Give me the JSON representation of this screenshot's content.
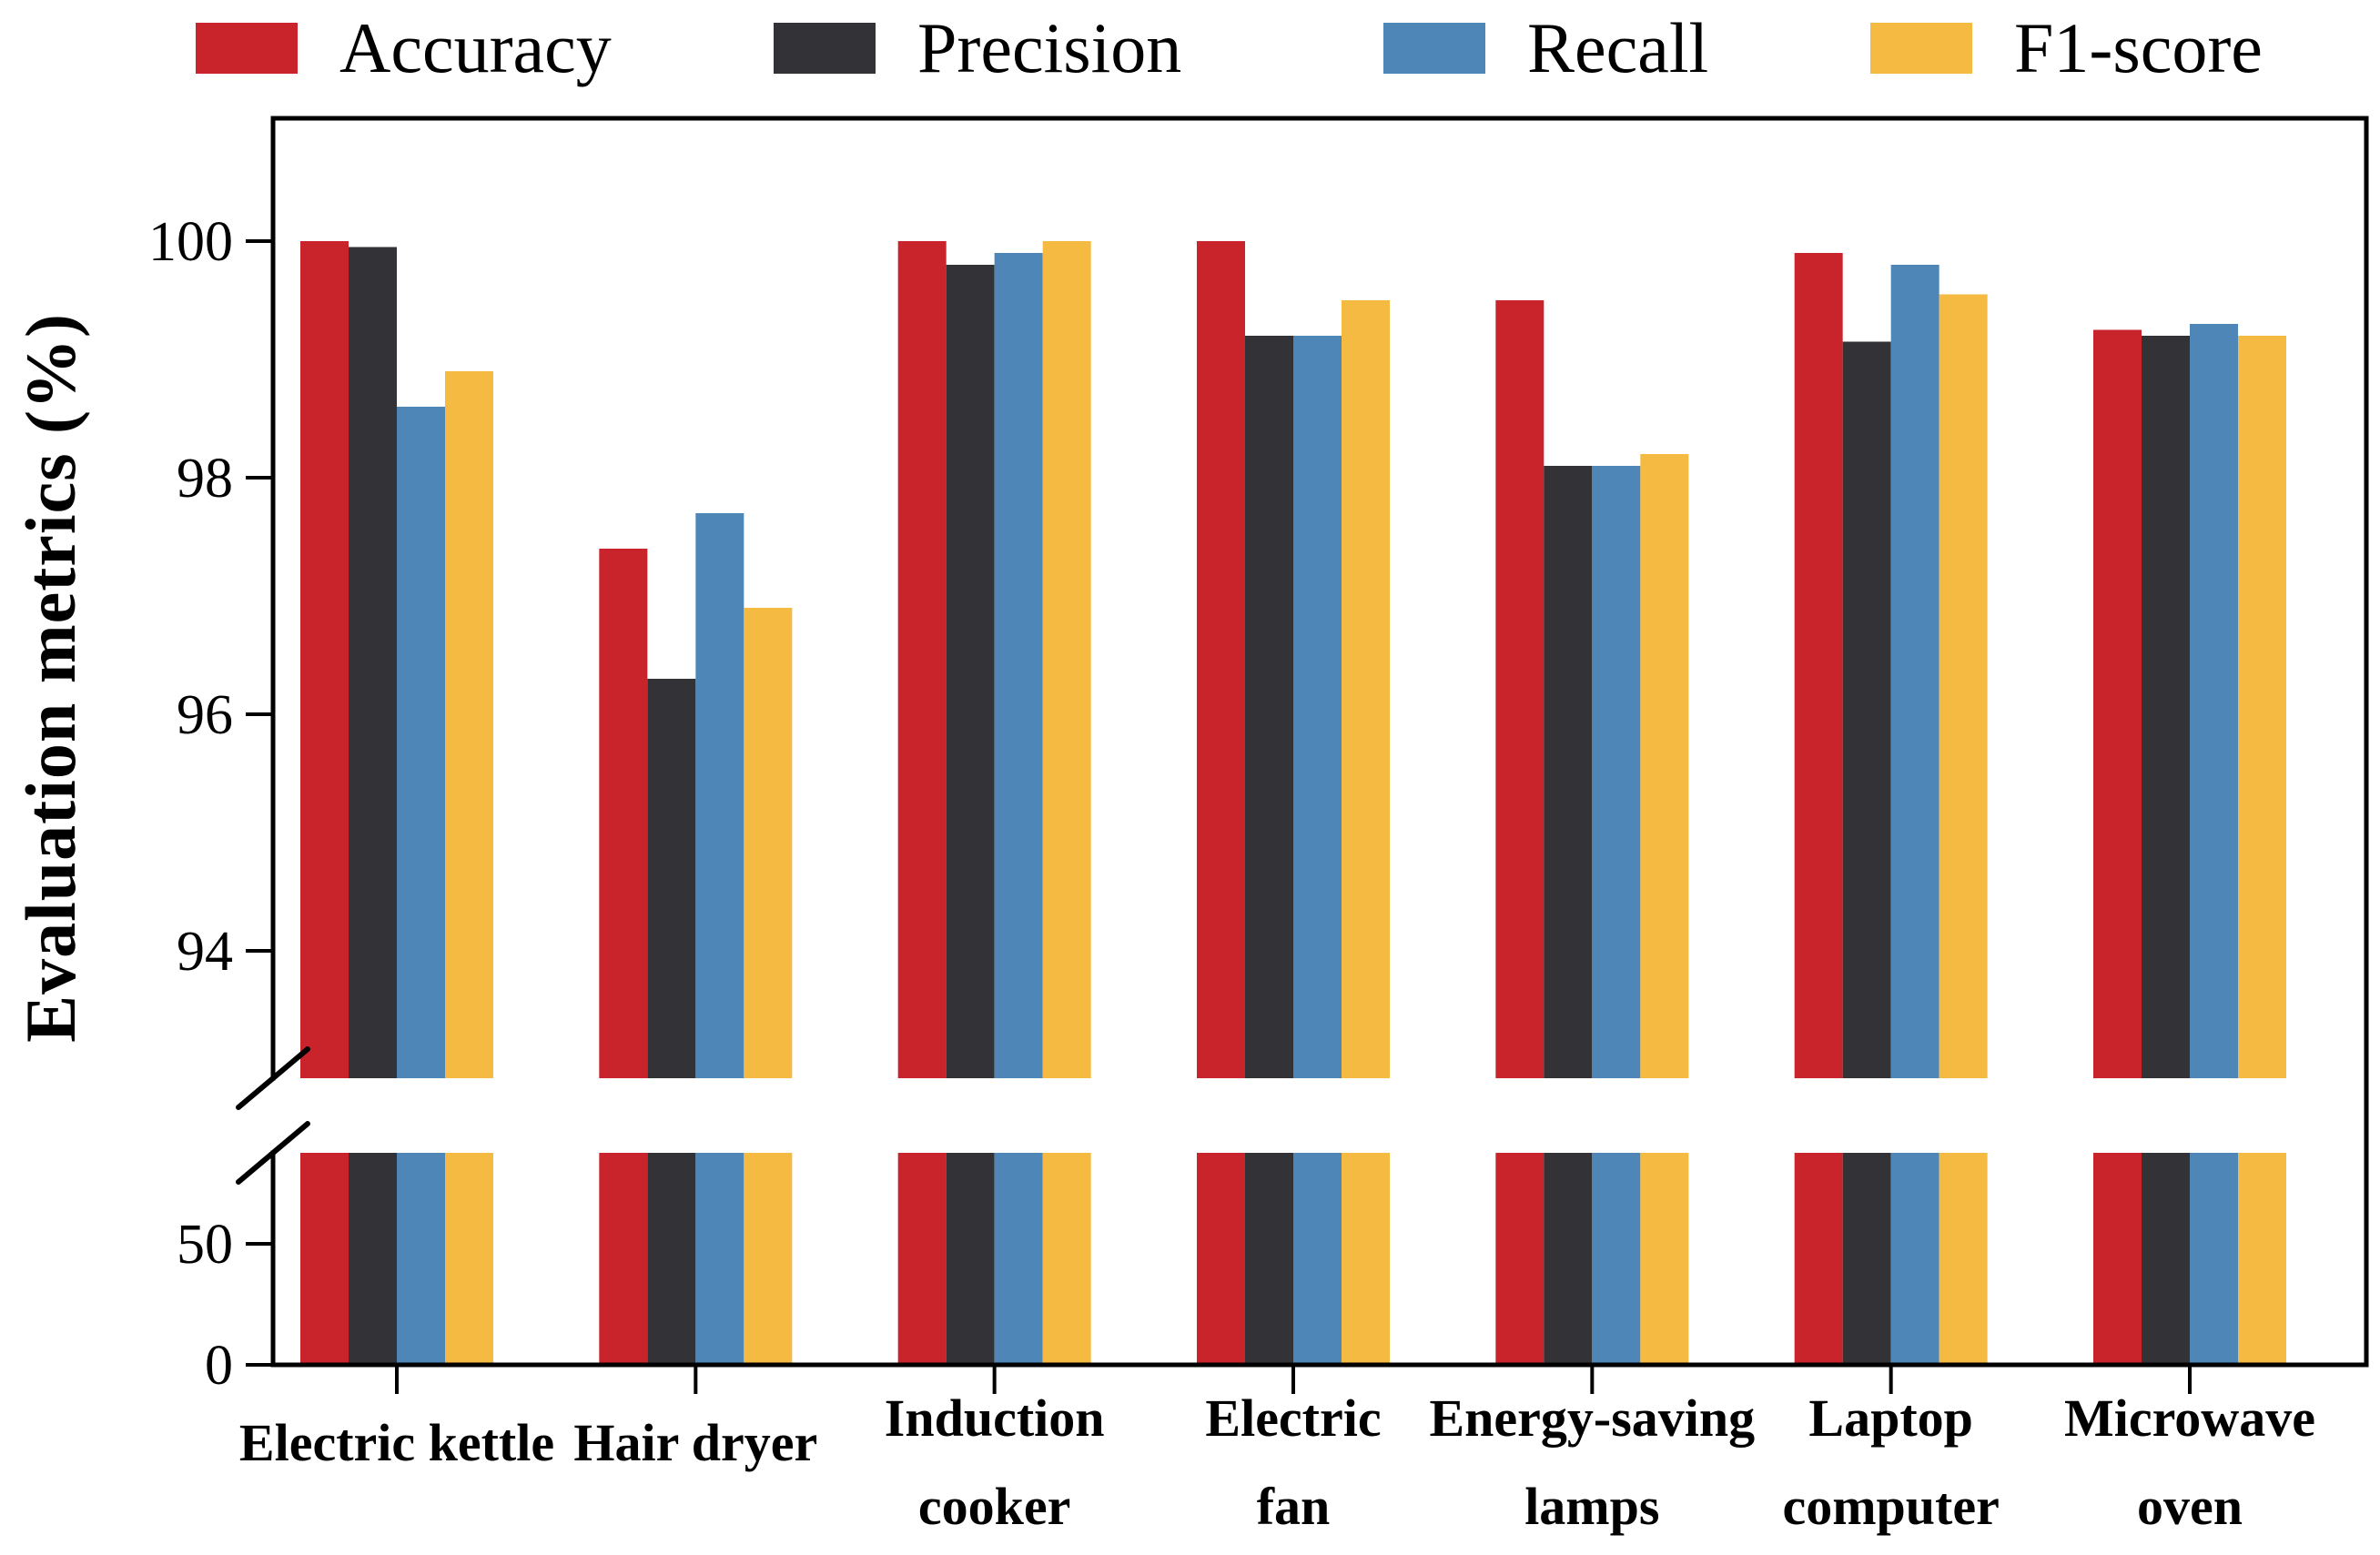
{
  "page": {
    "background": "#ffffff"
  },
  "chart_data": {
    "type": "bar",
    "title": "",
    "xlabel": "",
    "ylabel": "Evaluation metrics (%)",
    "legend_position": "top",
    "grid": false,
    "categories": [
      "Electric kettle",
      "Hair dryer",
      "Induction cooker",
      "Electric fan",
      "Energy-saving lamps",
      "Laptop computer",
      "Microwave oven"
    ],
    "category_lines": [
      [
        "Electric kettle"
      ],
      [
        "Hair dryer"
      ],
      [
        "Induction",
        "cooker"
      ],
      [
        "Electric",
        "fan"
      ],
      [
        "Energy-saving",
        "lamps"
      ],
      [
        "Laptop",
        "computer"
      ],
      [
        "Microwave",
        "oven"
      ]
    ],
    "series": [
      {
        "name": "Accuracy",
        "color": "#C9242B",
        "values": [
          100.0,
          97.4,
          100.0,
          100.0,
          99.5,
          99.9,
          99.25
        ]
      },
      {
        "name": "Precision",
        "color": "#333337",
        "values": [
          99.95,
          96.3,
          99.8,
          99.2,
          98.1,
          99.15,
          99.2
        ]
      },
      {
        "name": "Recall",
        "color": "#4E86B7",
        "values": [
          98.6,
          97.7,
          99.9,
          99.2,
          98.1,
          99.8,
          99.3
        ]
      },
      {
        "name": "F1-score",
        "color": "#F5BA42",
        "values": [
          98.9,
          96.9,
          100.0,
          99.5,
          98.2,
          99.55,
          99.2
        ]
      }
    ],
    "broken_axis": {
      "upper": {
        "ylim": [
          93,
          101.05
        ],
        "ticks": [
          100,
          98,
          96,
          94
        ]
      },
      "lower": {
        "ylim": [
          0,
          88
        ],
        "ticks": [
          50,
          0
        ]
      }
    },
    "axis_color": "#000000",
    "text_color": "#000000"
  }
}
